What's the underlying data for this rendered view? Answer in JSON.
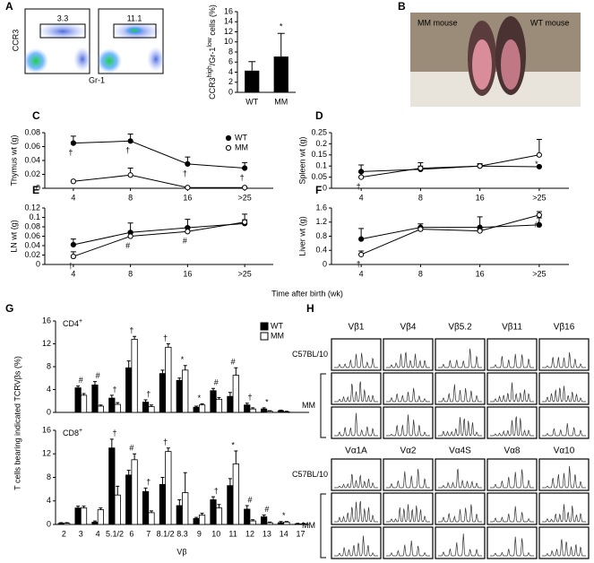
{
  "panel_letters": [
    "A",
    "B",
    "C",
    "D",
    "E",
    "F",
    "G",
    "H"
  ],
  "flow": {
    "y_label": "CCR3",
    "x_label": "Gr-1",
    "gates": [
      3.3,
      11.1
    ]
  },
  "photo": {
    "labels": [
      "MM mouse",
      "WT mouse"
    ]
  },
  "time_axis_label": "Time after birth (wk)",
  "panel_g": {
    "y_label": "T cells bearing indicated TCRVβs (%)",
    "x_label": "Vβ"
  },
  "spectratype": {
    "beta_headers": [
      "Vβ1",
      "Vβ4",
      "Vβ5.2",
      "Vβ11",
      "Vβ16"
    ],
    "alpha_headers": [
      "Vα1A",
      "Vα2",
      "Vα4S",
      "Vα8",
      "Vα10"
    ],
    "row_labels": [
      "C57BL/10",
      "MM"
    ]
  },
  "chart_data": [
    {
      "type": "bar",
      "y_label": [
        "CCR3",
        "high",
        "/Gr-1",
        "low",
        " cells (%)"
      ],
      "categories": [
        "WT",
        "MM"
      ],
      "values": [
        4.3,
        7.1
      ],
      "errors": [
        1.8,
        4.6
      ],
      "color": "#000000",
      "annotations": [
        null,
        "*"
      ],
      "ylim": [
        0,
        16
      ],
      "yticks": [
        0,
        2,
        4,
        6,
        8,
        10,
        12,
        14,
        16
      ]
    },
    {
      "type": "line",
      "y_label": "Thymus wt (g)",
      "categories": [
        "4",
        "8",
        "16",
        ">25"
      ],
      "legend": "upper right",
      "series": [
        {
          "name": "WT",
          "color": "#000000",
          "marker": "filled",
          "values": [
            0.065,
            0.068,
            0.035,
            0.029
          ],
          "errors": [
            0.01,
            0.01,
            0.01,
            0.008
          ],
          "annotations": [
            "†",
            "†",
            "†",
            "†"
          ]
        },
        {
          "name": "MM",
          "color": "#000000",
          "marker": "open",
          "values": [
            0.01,
            0.019,
            0.001,
            0.001
          ],
          "errors": [
            0,
            0.01,
            0,
            0
          ],
          "annotations": [
            null,
            null,
            null,
            null
          ]
        }
      ],
      "ylim": [
        0,
        0.08
      ],
      "yticks": [
        0,
        0.02,
        0.04,
        0.06,
        0.08
      ]
    },
    {
      "type": "line",
      "y_label": "Spleen wt (g)",
      "categories": [
        "4",
        "8",
        "16",
        ">25"
      ],
      "series": [
        {
          "name": "WT",
          "color": "#000000",
          "marker": "filled",
          "values": [
            0.075,
            0.085,
            0.1,
            0.097
          ],
          "errors": [
            0.03,
            0.03,
            0.01,
            0
          ],
          "annotations": [
            null,
            null,
            null,
            null
          ]
        },
        {
          "name": "MM",
          "color": "#000000",
          "marker": "open",
          "values": [
            0.05,
            0.09,
            0.1,
            0.15
          ],
          "errors": [
            0.02,
            0.01,
            0.01,
            0.07
          ],
          "annotations": [
            "†",
            null,
            null,
            "*"
          ]
        }
      ],
      "ylim": [
        0,
        0.25
      ],
      "yticks": [
        0,
        0.05,
        0.1,
        0.15,
        0.2,
        0.25
      ]
    },
    {
      "type": "line",
      "y_label": "LN wt (g)",
      "categories": [
        "4",
        "8",
        "16",
        ">25"
      ],
      "series": [
        {
          "name": "WT",
          "color": "#000000",
          "marker": "filled",
          "values": [
            0.042,
            0.068,
            0.078,
            0.087
          ],
          "errors": [
            0.012,
            0.02,
            0.018,
            0.02
          ],
          "annotations": [
            null,
            null,
            null,
            null
          ]
        },
        {
          "name": "MM",
          "color": "#000000",
          "marker": "open",
          "values": [
            0.017,
            0.06,
            0.07,
            0.09
          ],
          "errors": [
            0.01,
            0.01,
            0.01,
            0.005
          ],
          "annotations": [
            "†",
            "#",
            "#",
            null
          ]
        }
      ],
      "ylim": [
        0,
        0.12
      ],
      "yticks": [
        0,
        0.02,
        0.04,
        0.06,
        0.08,
        0.1,
        0.12
      ]
    },
    {
      "type": "line",
      "y_label": "Liver wt (g)",
      "categories": [
        "4",
        "8",
        "16",
        ">25"
      ],
      "series": [
        {
          "name": "WT",
          "color": "#000000",
          "marker": "filled",
          "values": [
            0.72,
            1.05,
            1.05,
            1.12
          ],
          "errors": [
            0.3,
            0.1,
            0.3,
            0.2
          ],
          "annotations": [
            null,
            null,
            null,
            null
          ]
        },
        {
          "name": "MM",
          "color": "#000000",
          "marker": "open",
          "values": [
            0.28,
            1.0,
            0.95,
            1.4
          ],
          "errors": [
            0.1,
            0.05,
            0.05,
            0.1
          ],
          "annotations": [
            "†",
            null,
            null,
            "#"
          ]
        }
      ],
      "ylim": [
        0,
        1.6
      ],
      "yticks": [
        0,
        0.4,
        0.8,
        1.2,
        1.6
      ]
    },
    {
      "type": "bar",
      "title": [
        "CD4",
        "+"
      ],
      "legend": "upper right",
      "series": [
        {
          "name": "WT",
          "color": "#000000",
          "values": [
            0,
            4.3,
            4.8,
            2.5,
            7.8,
            1.8,
            6.8,
            5.6,
            0.9,
            3.8,
            2.8,
            1.3,
            0.6,
            0.3,
            0
          ],
          "errors": [
            0,
            0.3,
            0.6,
            0.5,
            1.2,
            0.4,
            0.6,
            0.4,
            0.2,
            0.4,
            0.7,
            0.3,
            0.2,
            0.1,
            0
          ]
        },
        {
          "name": "MM",
          "color": "#ffffff",
          "values": [
            0,
            3.0,
            1.1,
            1.4,
            12.8,
            1.0,
            11.4,
            7.4,
            1.3,
            2.3,
            6.5,
            0.6,
            0.2,
            0.1,
            0
          ],
          "errors": [
            0,
            0.3,
            0.2,
            0.3,
            0.5,
            0.3,
            0.6,
            0.8,
            0.2,
            0.3,
            1.3,
            0.2,
            0.1,
            0.1,
            0
          ]
        }
      ],
      "annotations": [
        null,
        "#",
        "#",
        "†",
        "†",
        "†",
        "†",
        "*",
        "*",
        "#",
        "#",
        "†",
        "*",
        null,
        null
      ],
      "ylim": [
        0,
        16
      ],
      "yticks": [
        0,
        4,
        8,
        12,
        16
      ]
    },
    {
      "type": "bar",
      "title": [
        "CD8",
        "+"
      ],
      "categories": [
        "2",
        "3",
        "4",
        "5.1/2",
        "6",
        "7",
        "8.1/2",
        "8.3",
        "9",
        "10",
        "11",
        "12",
        "13",
        "14",
        "17"
      ],
      "series": [
        {
          "name": "WT",
          "color": "#000000",
          "values": [
            0.2,
            2.8,
            0.4,
            13,
            8.4,
            5.6,
            6.8,
            3.2,
            1.0,
            4.2,
            6.6,
            2.6,
            1.3,
            0.3,
            0.1
          ],
          "errors": [
            0.1,
            0.3,
            0.2,
            1.5,
            0.8,
            0.6,
            1.2,
            1.0,
            0.2,
            0.5,
            1.2,
            0.6,
            0.3,
            0.2,
            0.1
          ]
        },
        {
          "name": "MM",
          "color": "#ffffff",
          "values": [
            0.2,
            2.8,
            2.5,
            5.0,
            11.0,
            2.0,
            12.4,
            5.4,
            1.6,
            2.8,
            10.3,
            0.6,
            0.3,
            0.4,
            0.1
          ],
          "errors": [
            0.1,
            0.3,
            0.3,
            1.5,
            1.0,
            0.3,
            0.6,
            3.4,
            0.3,
            0.6,
            2.2,
            0.2,
            0.1,
            0.1,
            0.1
          ]
        }
      ],
      "annotations": [
        null,
        null,
        null,
        "†",
        "#",
        "†",
        "†",
        null,
        null,
        "†",
        "*",
        "#",
        "#",
        "*",
        null
      ],
      "ylim": [
        0,
        16
      ],
      "yticks": [
        0,
        4,
        8,
        12,
        16
      ]
    }
  ]
}
